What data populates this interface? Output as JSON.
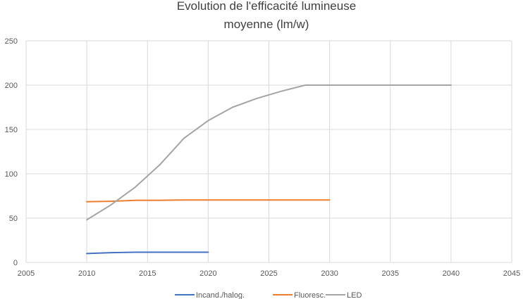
{
  "chart_data": {
    "type": "line",
    "title_lines": [
      "Evolution de l'efficacité lumineuse",
      "moyenne (lm/w)"
    ],
    "xlabel": "",
    "ylabel": "",
    "xlim": [
      2005,
      2045
    ],
    "ylim": [
      0,
      250
    ],
    "x_ticks": [
      2005,
      2010,
      2015,
      2020,
      2025,
      2030,
      2035,
      2040,
      2045
    ],
    "y_ticks": [
      0,
      50,
      100,
      150,
      200,
      250
    ],
    "x_tick_labels": [
      "2005",
      "2010",
      "2015",
      "2020",
      "2025",
      "2030",
      "2035",
      "2040",
      "2045"
    ],
    "y_tick_labels": [
      "0",
      "50",
      "100",
      "150",
      "200",
      "250"
    ],
    "grid": true,
    "legend_position": "bottom",
    "series": [
      {
        "name": "Incand./halog.",
        "color": "#4472C4",
        "points": [
          [
            2010,
            10
          ],
          [
            2012,
            11
          ],
          [
            2014,
            11.5
          ],
          [
            2016,
            11.5
          ],
          [
            2018,
            11.5
          ],
          [
            2020,
            11.5
          ]
        ]
      },
      {
        "name": "Fluoresc.",
        "color": "#ED7D31",
        "points": [
          [
            2010,
            68.5
          ],
          [
            2012,
            69
          ],
          [
            2014,
            70
          ],
          [
            2016,
            70
          ],
          [
            2018,
            70.5
          ],
          [
            2020,
            70.5
          ],
          [
            2022,
            70.5
          ],
          [
            2024,
            70.5
          ],
          [
            2026,
            70.5
          ],
          [
            2028,
            70.5
          ],
          [
            2030,
            70.5
          ]
        ]
      },
      {
        "name": "LED",
        "color": "#A5A5A5",
        "points": [
          [
            2010,
            48
          ],
          [
            2012,
            65
          ],
          [
            2014,
            85
          ],
          [
            2016,
            110
          ],
          [
            2018,
            140
          ],
          [
            2020,
            160
          ],
          [
            2022,
            175
          ],
          [
            2024,
            185
          ],
          [
            2026,
            193
          ],
          [
            2028,
            200
          ],
          [
            2030,
            200
          ],
          [
            2032,
            200
          ],
          [
            2034,
            200
          ],
          [
            2036,
            200
          ],
          [
            2038,
            200
          ],
          [
            2040,
            200
          ]
        ]
      }
    ]
  }
}
